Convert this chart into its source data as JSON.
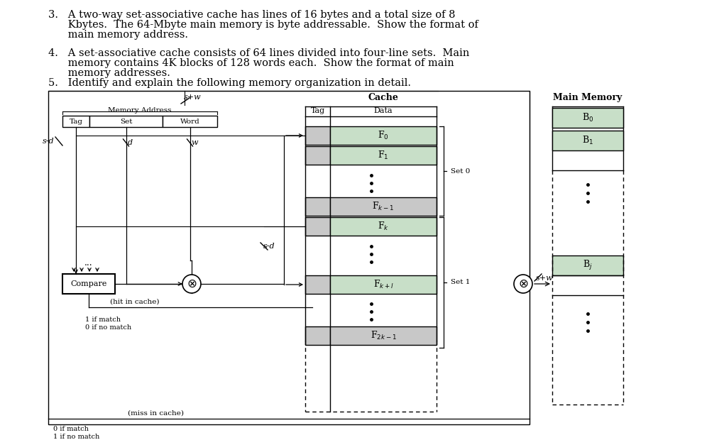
{
  "bg_color": "#ffffff",
  "text_color": "#000000",
  "green_fill": "#c8dfc8",
  "gray_fill": "#a8a8a8",
  "light_gray": "#c8c8c8",
  "title_lines": [
    [
      "3.",
      "  A two-way set-associative cache has lines of 16 bytes and a total size of 8"
    ],
    [
      "",
      "  Kbytes.  The 64-Mbyte main memory is byte addressable.  Show the format of"
    ],
    [
      "",
      "  main memory address."
    ],
    [
      "",
      ""
    ],
    [
      "4.",
      "  A set-associative cache consists of 64 lines divided into four-line sets.  Main"
    ],
    [
      "",
      "  memory contains 4K blocks of 128 words each.  Show the format of main"
    ],
    [
      "",
      "  memory addresses."
    ],
    [
      "5.",
      "  Identify and explain the following memory organization in detail."
    ]
  ],
  "figsize": [
    9.89,
    6.2
  ],
  "dpi": 100
}
